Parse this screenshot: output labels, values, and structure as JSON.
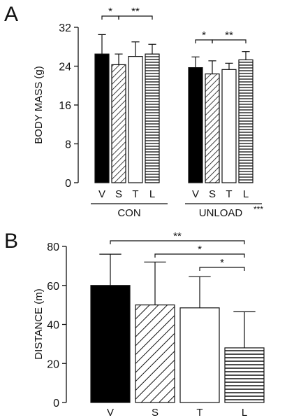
{
  "panels": [
    {
      "letter": "A"
    },
    {
      "letter": "B"
    }
  ],
  "colors": {
    "black": "#000000",
    "white": "#ffffff",
    "stroke": "#111111"
  },
  "chart_data": [
    {
      "type": "bar",
      "panel": "A",
      "ylabel": "BODY MASS (g)",
      "ylim": [
        0,
        32
      ],
      "yticks": [
        0,
        8,
        16,
        24,
        32
      ],
      "categories": [
        "V",
        "S",
        "T",
        "L"
      ],
      "fills": [
        "solid-black",
        "diagonal-hatch",
        "white",
        "horizontal-lines"
      ],
      "groups": [
        {
          "name": "CON",
          "values": [
            26.5,
            24.3,
            26.0,
            26.5
          ],
          "errors": [
            4.0,
            2.2,
            3.0,
            2.0
          ]
        },
        {
          "name": "UNLOAD",
          "suffix": "***",
          "values": [
            23.7,
            22.4,
            23.3,
            25.3
          ],
          "errors": [
            2.2,
            2.7,
            1.3,
            1.7
          ]
        }
      ],
      "significance": [
        {
          "group": "CON",
          "from": "V",
          "to": "S",
          "label": "*"
        },
        {
          "group": "CON",
          "from": "S",
          "to": "L",
          "label": "**"
        },
        {
          "group": "UNLOAD",
          "from": "V",
          "to": "S",
          "label": "*"
        },
        {
          "group": "UNLOAD",
          "from": "S",
          "to": "L",
          "label": "**"
        }
      ]
    },
    {
      "type": "bar",
      "panel": "B",
      "ylabel": "DISTANCE (m)",
      "ylim": [
        0,
        80
      ],
      "yticks": [
        0,
        20,
        40,
        60,
        80
      ],
      "categories": [
        "V",
        "S",
        "T",
        "L"
      ],
      "fills": [
        "solid-black",
        "diagonal-hatch",
        "white",
        "horizontal-lines"
      ],
      "values": [
        60,
        50,
        48.5,
        28
      ],
      "errors": [
        16,
        22,
        16,
        18.5
      ],
      "significance": [
        {
          "from": "V",
          "to": "L",
          "label": "**"
        },
        {
          "from": "S",
          "to": "L",
          "label": "*"
        },
        {
          "from": "T",
          "to": "L",
          "label": "*"
        }
      ]
    }
  ]
}
